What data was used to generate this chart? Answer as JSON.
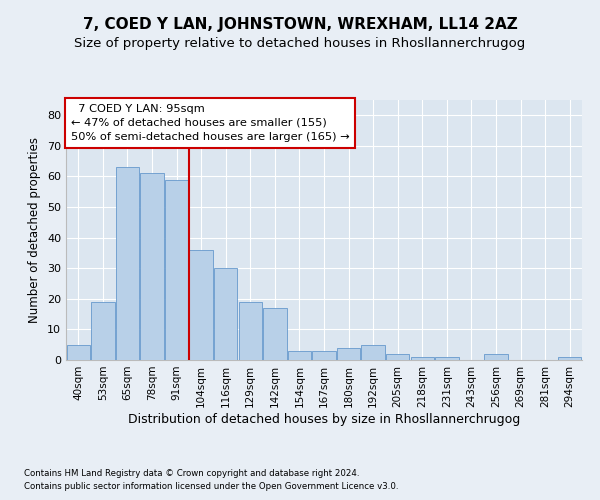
{
  "title": "7, COED Y LAN, JOHNSTOWN, WREXHAM, LL14 2AZ",
  "subtitle": "Size of property relative to detached houses in Rhosllannerchrugog",
  "xlabel": "Distribution of detached houses by size in Rhosllannerchrugog",
  "ylabel": "Number of detached properties",
  "categories": [
    "40sqm",
    "53sqm",
    "65sqm",
    "78sqm",
    "91sqm",
    "104sqm",
    "116sqm",
    "129sqm",
    "142sqm",
    "154sqm",
    "167sqm",
    "180sqm",
    "192sqm",
    "205sqm",
    "218sqm",
    "231sqm",
    "243sqm",
    "256sqm",
    "269sqm",
    "281sqm",
    "294sqm"
  ],
  "values": [
    5,
    19,
    63,
    61,
    59,
    36,
    30,
    19,
    17,
    3,
    3,
    4,
    5,
    2,
    1,
    1,
    0,
    2,
    0,
    0,
    1
  ],
  "bar_color": "#b8d0e8",
  "bar_edge_color": "#6699cc",
  "bar_width": 0.95,
  "red_line_x": 4.5,
  "annotation_text": "  7 COED Y LAN: 95sqm  \n← 47% of detached houses are smaller (155)\n50% of semi-detached houses are larger (165) →",
  "annotation_box_color": "#ffffff",
  "annotation_box_edge": "#cc0000",
  "red_line_color": "#cc0000",
  "ylim": [
    0,
    85
  ],
  "yticks": [
    0,
    10,
    20,
    30,
    40,
    50,
    60,
    70,
    80
  ],
  "footer1": "Contains HM Land Registry data © Crown copyright and database right 2024.",
  "footer2": "Contains public sector information licensed under the Open Government Licence v3.0.",
  "background_color": "#e8eef5",
  "plot_bg_color": "#dce6f0",
  "grid_color": "#ffffff",
  "title_fontsize": 11,
  "subtitle_fontsize": 9.5,
  "xlabel_fontsize": 9,
  "ylabel_fontsize": 8.5
}
